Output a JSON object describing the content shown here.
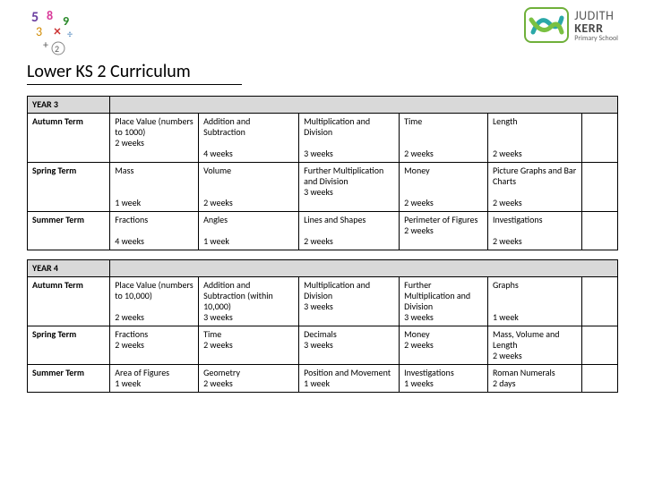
{
  "logo": {
    "line1": "JUDITH",
    "line2": "KERR",
    "line3": "Primary School",
    "mark_border": "#6fb03a",
    "swirl1": "#2aa8a8",
    "swirl2": "#7ac142"
  },
  "title": "Lower KS 2 Curriculum",
  "tables": [
    {
      "year_label": "YEAR 3",
      "rows": [
        [
          "Autumn Term",
          "Place Value (numbers to 1000)\n2 weeks",
          "Addition and Subtraction\n\n4 weeks",
          "Multiplication and Division\n\n3 weeks",
          "Time\n\n\n2 weeks",
          "Length\n\n\n2 weeks",
          ""
        ],
        [
          "Spring Term",
          "Mass\n\n\n1 week",
          "Volume\n\n\n2 weeks",
          "Further Multiplication and Division\n3 weeks",
          "Money\n\n\n2 weeks",
          "Picture Graphs and Bar Charts\n\n2 weeks",
          ""
        ],
        [
          "Summer Term",
          "Fractions\n\n4 weeks",
          "Angles\n\n1 week",
          "Lines and Shapes\n\n2 weeks",
          "Perimeter of Figures\n2 weeks",
          "Investigations\n\n2 weeks",
          ""
        ]
      ]
    },
    {
      "year_label": "YEAR 4",
      "rows": [
        [
          "Autumn Term",
          "Place Value (numbers to 10,000)\n\n2 weeks",
          "Addition and Subtraction (within 10,000)\n3 weeks",
          "Multiplication and Division\n3 weeks",
          "Further Multiplication and Division\n3 weeks",
          "Graphs\n\n\n1 week",
          ""
        ],
        [
          "Spring Term",
          "Fractions\n2 weeks",
          "Time\n2 weeks",
          "Decimals\n3 weeks",
          "Money\n2 weeks",
          "Mass, Volume and Length\n2 weeks",
          ""
        ],
        [
          "Summer Term",
          "Area of Figures\n1 week",
          "Geometry\n2 weeks",
          "Position and Movement\n1 week",
          "Investigations\n1 weeks",
          "Roman Numerals\n2 days",
          ""
        ]
      ]
    }
  ],
  "colors": {
    "header_bg": "#d9d9d9",
    "border": "#000000",
    "page_bg": "#ffffff",
    "text": "#000000"
  },
  "fontsizes": {
    "title": 20,
    "year": 10,
    "cell": 10
  }
}
